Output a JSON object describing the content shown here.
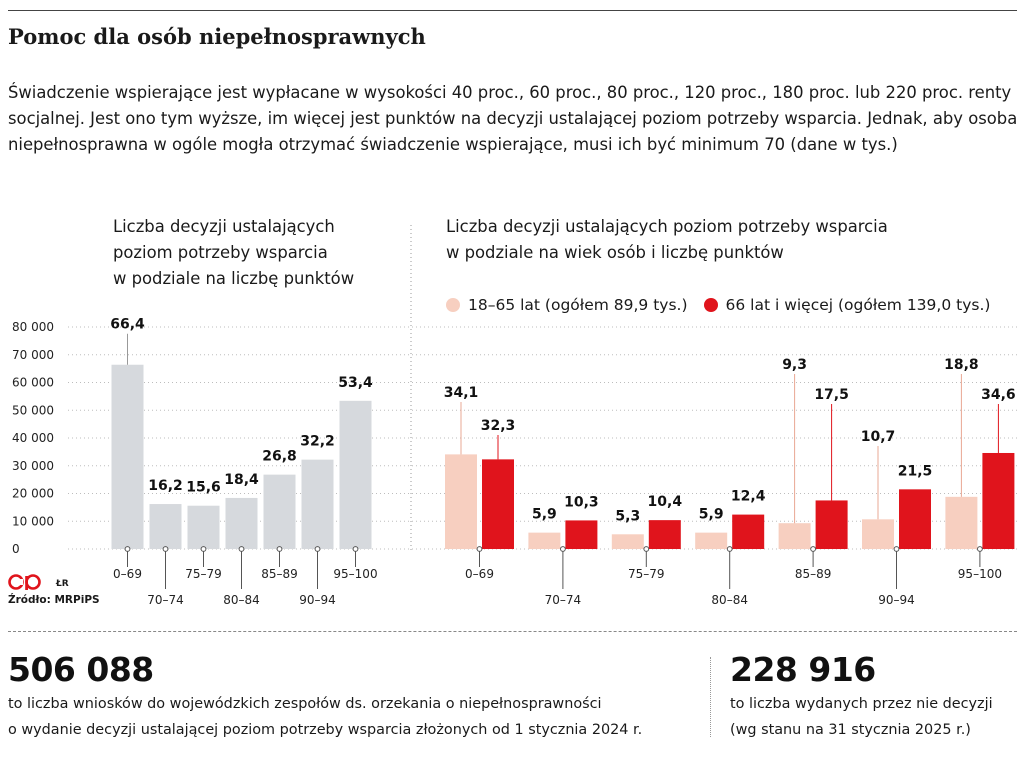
{
  "title": "Pomoc dla osób niepełnosprawnych",
  "description": "Świadczenie wspierające jest wypłacane w wysokości 40 proc., 60 proc., 80 proc., 120 proc., 180 proc. lub 220 proc. renty socjalnej. Jest ono tym wyższe, im więcej jest punktów na decyzji ustalającej poziom potrzeby wsparcia. Jednak, aby osoba niepełnosprawna w ogóle mogła otrzymać świadczenie wspierające, musi ich być minimum 70 (dane w tys.)",
  "left_panel": {
    "title_lines": [
      "Liczba decyzji ustalających",
      "poziom potrzeby wsparcia",
      "w podziale na liczbę punktów"
    ]
  },
  "right_panel": {
    "title_lines": [
      "Liczba decyzji ustalających poziom potrzeby wsparcia",
      "w podziale na wiek osób i liczbę punktów"
    ]
  },
  "chart_data": [
    {
      "type": "bar",
      "title": "Liczba decyzji ustalających poziom potrzeby wsparcia w podziale na liczbę punktów",
      "categories": [
        "0–69",
        "70–74",
        "75–79",
        "80–84",
        "85–89",
        "90–94",
        "95–100"
      ],
      "values": [
        66.4,
        16.2,
        15.6,
        18.4,
        26.8,
        32.2,
        53.4
      ],
      "value_labels": [
        "66,4",
        "16,2",
        "15,6",
        "18,4",
        "26,8",
        "32,2",
        "53,4"
      ],
      "yticks": [
        0,
        10000,
        20000,
        30000,
        40000,
        50000,
        60000,
        70000,
        80000
      ],
      "ytick_labels": [
        "0",
        "10 000",
        "20 000",
        "30 000",
        "40 000",
        "50 000",
        "60 000",
        "70 000",
        "80 000"
      ],
      "ylim": [
        0,
        80000
      ],
      "color": "#d6d9dd"
    },
    {
      "type": "bar",
      "title": "Liczba decyzji ustalających poziom potrzeby wsparcia w podziale na wiek osób i liczbę punktów",
      "categories": [
        "0–69",
        "70–74",
        "75–79",
        "80–84",
        "85–89",
        "90–94",
        "95–100"
      ],
      "series": [
        {
          "name": "18–65 lat (ogółem 89,9 tys.)",
          "color": "#f7cfc0",
          "values": [
            34.1,
            5.9,
            5.3,
            5.9,
            9.3,
            10.7,
            18.8
          ],
          "value_labels": [
            "34,1",
            "5,9",
            "5,3",
            "5,9",
            "9,3",
            "10,7",
            "18,8"
          ]
        },
        {
          "name": "66 lat i więcej (ogółem 139,0 tys.)",
          "color": "#e0141c",
          "values": [
            32.3,
            10.3,
            10.4,
            12.4,
            17.5,
            21.5,
            34.6
          ],
          "value_labels": [
            "32,3",
            "10,3",
            "10,4",
            "12,4",
            "17,5",
            "21,5",
            "34,6"
          ]
        }
      ],
      "ylim": [
        0,
        80000
      ],
      "legend": "top"
    }
  ],
  "logo_credit": "ŁR",
  "source": "Źródło: MRPiPS",
  "stats": [
    {
      "number": "506 088",
      "lines": [
        "to liczba wniosków do wojewódzkich zespołów ds. orzekania o niepełnosprawności",
        "o wydanie decyzji ustalającej poziom potrzeby wsparcia złożonych od 1 stycznia 2024 r."
      ]
    },
    {
      "number": "228 916",
      "lines": [
        "to liczba wydanych przez nie decyzji",
        "(wg stanu na 31 stycznia 2025 r.)"
      ]
    }
  ]
}
